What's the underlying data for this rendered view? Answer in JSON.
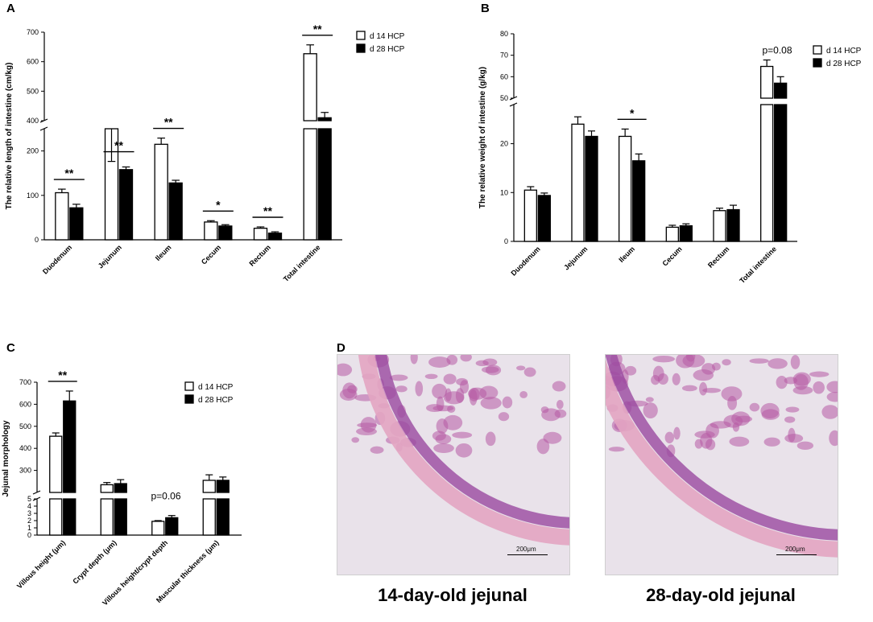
{
  "chart_data": [
    {
      "panel": "A",
      "type": "bar",
      "ylabel": "The relative length of intestine (cm/kg)",
      "categories": [
        "Duodenum",
        "Jejunum",
        "Ileum",
        "Cecum",
        "Rectum",
        "Total intestine"
      ],
      "series": [
        {
          "name": "d 14 HCP",
          "fill": "#ffffff",
          "values": [
            106,
            250,
            215,
            40,
            26,
            627
          ],
          "errors": [
            8,
            12,
            14,
            3,
            3,
            30
          ]
        },
        {
          "name": "d 28 HCP",
          "fill": "#000000",
          "values": [
            72,
            158,
            128,
            31,
            15,
            410
          ],
          "errors": [
            8,
            6,
            6,
            3,
            3,
            18
          ]
        }
      ],
      "yaxis_broken": true,
      "y_lower_range": [
        0,
        250
      ],
      "y_upper_range": [
        400,
        700
      ],
      "y_ticks": [
        0,
        100,
        200,
        400,
        500,
        600,
        700
      ],
      "significance": [
        "**",
        "**",
        "**",
        "*",
        "**",
        "**"
      ],
      "legend": "top-right"
    },
    {
      "panel": "B",
      "type": "bar",
      "ylabel": "The relative weight of intestine (g/kg)",
      "categories": [
        "Duodenum",
        "Jejunum",
        "Ileum",
        "Cecum",
        "Rectum",
        "Total intestine"
      ],
      "series": [
        {
          "name": "d 14 HCP",
          "fill": "#ffffff",
          "values": [
            10.5,
            24.0,
            21.5,
            2.9,
            6.3,
            64.8
          ],
          "errors": [
            0.7,
            1.5,
            1.5,
            0.4,
            0.5,
            3.0
          ]
        },
        {
          "name": "d 28 HCP",
          "fill": "#000000",
          "values": [
            9.4,
            21.5,
            16.5,
            3.2,
            6.5,
            57.0
          ],
          "errors": [
            0.5,
            1.1,
            1.4,
            0.4,
            0.9,
            3.0
          ]
        }
      ],
      "yaxis_broken": true,
      "y_lower_range": [
        0,
        28
      ],
      "y_upper_range": [
        50,
        80
      ],
      "y_ticks": [
        0,
        10,
        20,
        50,
        60,
        70,
        80
      ],
      "significance": [
        "",
        "",
        "*",
        "",
        "",
        ""
      ],
      "annotation": "p=0.08",
      "legend": "top-right"
    },
    {
      "panel": "C",
      "type": "bar",
      "ylabel": "Jejunal morphology",
      "categories": [
        "Villous height (μm)",
        "Crypt depth (μm)",
        "Villous height/crypt depth",
        "Muscular thickness (μm)"
      ],
      "series": [
        {
          "name": "d 14 HCP",
          "fill": "#ffffff",
          "values": [
            455,
            235,
            1.9,
            255
          ],
          "errors": [
            15,
            10,
            0.1,
            25
          ]
        },
        {
          "name": "d 28 HCP",
          "fill": "#000000",
          "values": [
            615,
            240,
            2.4,
            255
          ],
          "errors": [
            45,
            18,
            0.3,
            15
          ]
        }
      ],
      "yaxis_broken": true,
      "y_lower_range": [
        0,
        5
      ],
      "y_upper_range": [
        200,
        700
      ],
      "y_ticks": [
        0,
        1,
        2,
        3,
        4,
        5,
        300,
        400,
        500,
        600,
        700
      ],
      "significance": [
        "**",
        "",
        "",
        ""
      ],
      "annotation": "p=0.06",
      "legend": "top-right"
    }
  ],
  "panels": {
    "a": "A",
    "b": "B",
    "c": "C",
    "d": "D"
  },
  "micrographs": {
    "left_caption": "14-day-old jejunal",
    "right_caption": "28-day-old jejunal",
    "scale_label": "200μm",
    "tissue_colors": {
      "background": "#e9e2ea",
      "villi": "#b75aa4",
      "mucosa": "#9a4aa0",
      "muscle": "#e3a5c2"
    }
  }
}
